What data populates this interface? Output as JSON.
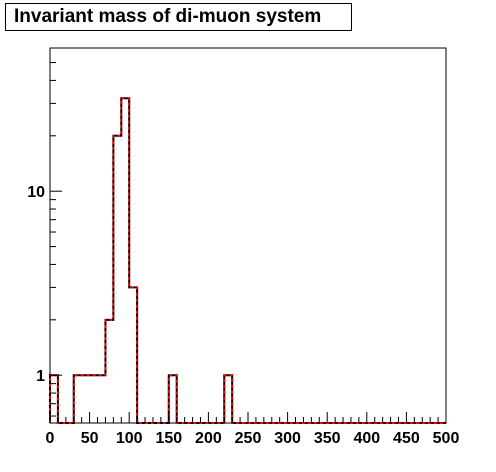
{
  "chart_data": {
    "type": "step",
    "title": "Invariant mass of di-muon system",
    "xlabel": "",
    "ylabel": "",
    "xlim": [
      0,
      500
    ],
    "ylim": [
      0.55,
      60
    ],
    "yscale": "log",
    "grid": false,
    "legend": "none",
    "bin_width": 10,
    "x_tick_labels": [
      "0",
      "50",
      "100",
      "150",
      "200",
      "250",
      "300",
      "350",
      "400",
      "450",
      "500"
    ],
    "y_tick_labels": [
      {
        "value": 1,
        "label": "1"
      },
      {
        "value": 10,
        "label": "10"
      }
    ],
    "series": [
      {
        "bin_edges": [
          0,
          10,
          20,
          30,
          40,
          50,
          60,
          70,
          80,
          90,
          100,
          110,
          120,
          130,
          140,
          150,
          160,
          170,
          180,
          190,
          200,
          210,
          220,
          230,
          240,
          250,
          260,
          270,
          280,
          290,
          300,
          310,
          320,
          330,
          340,
          350,
          360,
          370,
          380,
          390,
          400,
          410,
          420,
          430,
          440,
          450,
          460,
          470,
          480,
          490,
          500
        ],
        "values": [
          1,
          0,
          0,
          1,
          1,
          1,
          1,
          2,
          20,
          32,
          3,
          0,
          0,
          0,
          0,
          1,
          0,
          0,
          0,
          0,
          0,
          0,
          1,
          0,
          0,
          0,
          0,
          0,
          0,
          0,
          0,
          0,
          0,
          0,
          0,
          0,
          0,
          0,
          0,
          0,
          0,
          0,
          0,
          0,
          0,
          0,
          0,
          0,
          0,
          0
        ]
      }
    ],
    "colors": {
      "outline": "#000000",
      "overlay": "#ff0000"
    }
  }
}
